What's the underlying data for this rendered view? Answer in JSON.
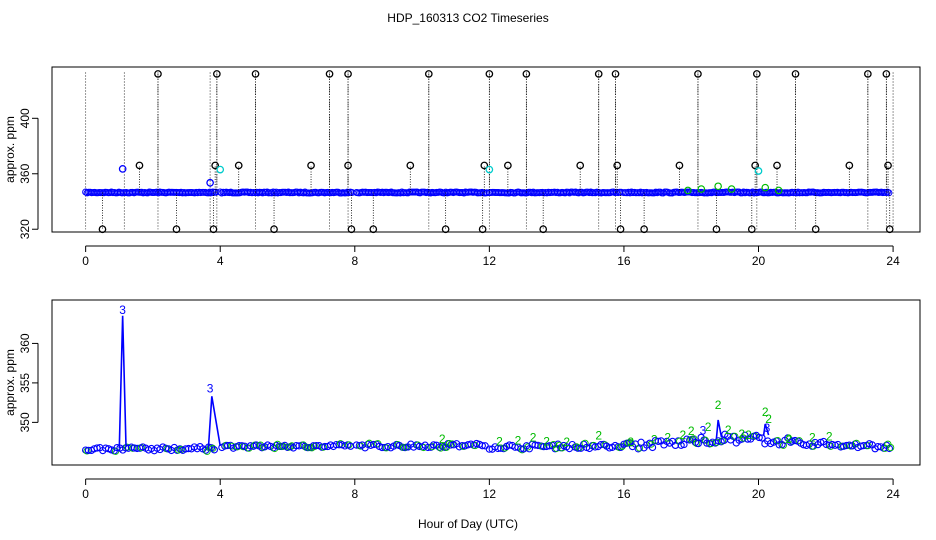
{
  "figure": {
    "title": "HDP_160313  CO2 Timeseries",
    "xlabel": "Hour of Day (UTC)"
  },
  "colors": {
    "axis": "#000000",
    "series_black": "#000000",
    "series_blue": "#0000ff",
    "series_green": "#00bb00",
    "series_cyan": "#00cccc"
  },
  "chart_data": [
    {
      "type": "scatter",
      "title": "HDP_160313  CO2 Timeseries",
      "ylabel": "approx. ppm",
      "xlabel": "",
      "xlim": [
        -1.0,
        24.8
      ],
      "ylim": [
        318,
        437
      ],
      "xticks": [
        0,
        4,
        8,
        12,
        16,
        20,
        24
      ],
      "yticks": [
        320,
        360,
        400
      ],
      "grid": false,
      "baseline_blue": {
        "segments": [
          [
            0.0,
            3.9
          ],
          [
            4.0,
            7.95
          ],
          [
            8.05,
            11.95
          ],
          [
            12.0,
            15.95
          ],
          [
            16.0,
            23.9
          ]
        ],
        "y": 346.5
      },
      "spikes_high_black": {
        "x": [
          2.15,
          3.9,
          5.05,
          7.25,
          7.8,
          10.2,
          12.0,
          13.1,
          15.25,
          15.75,
          18.2,
          19.95,
          21.1,
          23.25,
          23.8
        ],
        "y": 432
      },
      "spikes_low_black": {
        "x": [
          0.5,
          2.7,
          3.8,
          5.6,
          7.9,
          8.55,
          10.7,
          11.8,
          13.6,
          15.9,
          16.6,
          18.75,
          19.8,
          21.7,
          23.9
        ],
        "y": 320
      },
      "spikes_mid_black": {
        "x": [
          1.6,
          3.85,
          4.55,
          6.7,
          7.8,
          9.65,
          11.85,
          12.55,
          14.7,
          15.8,
          17.65,
          19.9,
          20.55,
          22.7,
          23.85
        ],
        "y": 366
      },
      "series_blue_points": {
        "x": [
          1.1,
          3.7
        ],
        "y": [
          363.5,
          353.5
        ]
      },
      "series_cyan_points": {
        "x": [
          4.0,
          12.0,
          20.0
        ],
        "y": [
          363,
          363,
          362
        ]
      },
      "series_green_points": {
        "x": [
          17.9,
          18.3,
          18.8,
          19.2,
          20.2,
          20.6
        ],
        "y": [
          348,
          349,
          351,
          349,
          350,
          348
        ]
      },
      "dotted_vertical_lines": {
        "x": [
          0.0,
          1.15,
          2.15,
          3.7,
          3.9,
          5.05,
          7.25,
          7.8,
          10.2,
          12.0,
          13.1,
          15.25,
          15.75,
          18.2,
          19.95,
          21.1,
          23.25,
          23.8,
          24.0
        ]
      }
    },
    {
      "type": "line",
      "ylabel": "approx. ppm",
      "xlabel": "Hour of Day (UTC)",
      "xlim": [
        -1.0,
        24.8
      ],
      "ylim": [
        344.6,
        365.5
      ],
      "xticks": [
        0,
        4,
        8,
        12,
        16,
        20,
        24
      ],
      "yticks": [
        350,
        355,
        360
      ],
      "grid": false,
      "spike_labels": [
        {
          "text": "3",
          "x": 1.1,
          "y": 363.5,
          "color": "#0000ff"
        },
        {
          "text": "3",
          "x": 3.7,
          "y": 353.5,
          "color": "#0000ff"
        },
        {
          "text": "3",
          "x": 18.35,
          "y": 348.2,
          "color": "#0000ff"
        },
        {
          "text": "3",
          "x": 20.25,
          "y": 348.5,
          "color": "#0000ff"
        }
      ],
      "green_labels": [
        {
          "text": "2",
          "x": 10.6,
          "y": 347.4
        },
        {
          "text": "2",
          "x": 12.3,
          "y": 347.1
        },
        {
          "text": "2",
          "x": 12.85,
          "y": 347.2
        },
        {
          "text": "2",
          "x": 13.3,
          "y": 347.6
        },
        {
          "text": "2",
          "x": 13.7,
          "y": 347.1
        },
        {
          "text": "2",
          "x": 14.3,
          "y": 347.0
        },
        {
          "text": "2",
          "x": 15.25,
          "y": 347.8
        },
        {
          "text": "2",
          "x": 16.2,
          "y": 347.0
        },
        {
          "text": "2",
          "x": 16.9,
          "y": 347.3
        },
        {
          "text": "2",
          "x": 17.3,
          "y": 347.6
        },
        {
          "text": "2",
          "x": 17.75,
          "y": 347.9
        },
        {
          "text": "2",
          "x": 18.0,
          "y": 348.4
        },
        {
          "text": "2",
          "x": 18.5,
          "y": 348.9
        },
        {
          "text": "2",
          "x": 18.8,
          "y": 351.7
        },
        {
          "text": "2",
          "x": 19.1,
          "y": 348.5
        },
        {
          "text": "2",
          "x": 19.5,
          "y": 348.0
        },
        {
          "text": "2",
          "x": 19.7,
          "y": 347.9
        },
        {
          "text": "2",
          "x": 20.2,
          "y": 350.8
        },
        {
          "text": "2",
          "x": 20.3,
          "y": 349.9
        },
        {
          "text": "2",
          "x": 20.9,
          "y": 347.4
        },
        {
          "text": "2",
          "x": 21.6,
          "y": 347.6
        },
        {
          "text": "2",
          "x": 22.1,
          "y": 347.7
        }
      ],
      "spike_lines": [
        {
          "x": [
            1.0,
            1.1,
            1.2
          ],
          "y": [
            346.7,
            363.5,
            346.9
          ]
        },
        {
          "x": [
            3.65,
            3.75,
            4.0
          ],
          "y": [
            346.8,
            353.3,
            347.0
          ]
        },
        {
          "x": [
            18.75,
            18.8,
            18.9
          ],
          "y": [
            348.0,
            350.3,
            348.1
          ]
        },
        {
          "x": [
            20.15,
            20.2,
            20.3
          ],
          "y": [
            348.3,
            349.8,
            348.4
          ]
        }
      ],
      "baseline_segments": [
        {
          "x0": 0.0,
          "x1": 3.9,
          "y0": 346.6,
          "y1": 346.7,
          "noise": 0.25
        },
        {
          "x0": 4.05,
          "x1": 7.95,
          "y0": 346.9,
          "y1": 347.0,
          "noise": 0.2
        },
        {
          "x0": 8.05,
          "x1": 11.95,
          "y0": 347.0,
          "y1": 347.1,
          "noise": 0.25
        },
        {
          "x0": 12.0,
          "x1": 15.95,
          "y0": 346.9,
          "y1": 347.0,
          "noise": 0.3
        },
        {
          "x0": 16.0,
          "x1": 19.0,
          "y0": 347.0,
          "y1": 347.8,
          "noise": 0.5
        },
        {
          "x0": 19.0,
          "x1": 21.0,
          "y0": 348.0,
          "y1": 347.6,
          "noise": 0.6
        },
        {
          "x0": 21.0,
          "x1": 23.9,
          "y0": 347.4,
          "y1": 346.9,
          "noise": 0.35
        }
      ]
    }
  ]
}
